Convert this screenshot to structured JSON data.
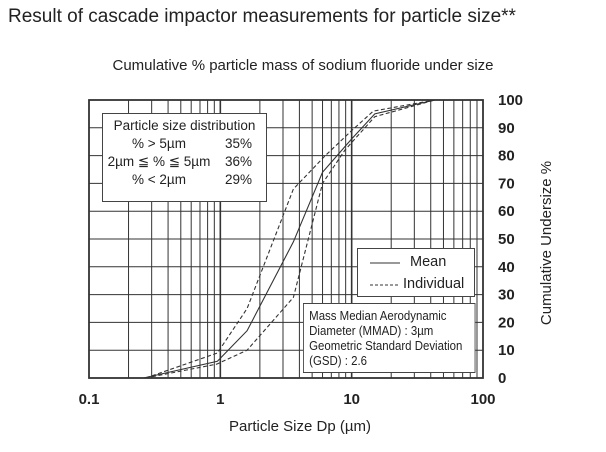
{
  "title": "Result of cascade impactor measurements for particle size**",
  "chart_data": {
    "type": "line",
    "title": "Cumulative % particle mass of sodium fluoride under size",
    "xlabel": "Particle Size Dp (µm)",
    "ylabel": "Cumulative Undersize %",
    "xscale": "log",
    "xlim": [
      0.1,
      100
    ],
    "ylim": [
      0,
      100
    ],
    "xticks": [
      "0.1",
      "1",
      "10",
      "100"
    ],
    "xtick_values": [
      0.1,
      1,
      10,
      100
    ],
    "yticks": [
      "0",
      "10",
      "20",
      "30",
      "40",
      "50",
      "60",
      "70",
      "80",
      "90",
      "100"
    ],
    "grid": true,
    "series": [
      {
        "name": "Mean",
        "style": "solid",
        "x": [
          0.26,
          0.95,
          1.6,
          3.6,
          6.0,
          10,
          15,
          43
        ],
        "y": [
          0,
          6,
          17,
          49,
          74,
          86,
          95,
          100
        ]
      },
      {
        "name": "Individual",
        "style": "dashed",
        "x": [
          0.27,
          0.95,
          1.6,
          3.6,
          6.3,
          10,
          14.6,
          43
        ],
        "y": [
          0,
          9,
          25,
          68,
          80,
          89,
          96,
          100
        ]
      },
      {
        "name": "Individual",
        "style": "dashed",
        "x": [
          0.27,
          0.94,
          1.6,
          3.6,
          6.0,
          8.9,
          15,
          43
        ],
        "y": [
          0,
          5,
          10,
          29,
          70,
          82,
          94,
          100
        ]
      }
    ],
    "legend": {
      "placement": "lower-right",
      "entries": [
        "Mean",
        "Individual"
      ]
    },
    "distribution_box": {
      "title": "Particle size distribution",
      "rows": [
        {
          "label": "% > 5µm",
          "value": "35%"
        },
        {
          "label": "2µm ≦ % ≦ 5µm",
          "value": "36%"
        },
        {
          "label": "% < 2µm",
          "value": "29%"
        }
      ]
    },
    "annotation": [
      "Mass Median Aerodynamic",
      "Diameter (MMAD) : 3µm",
      "Geometric Standard Deviation",
      "(GSD) : 2.6"
    ]
  }
}
